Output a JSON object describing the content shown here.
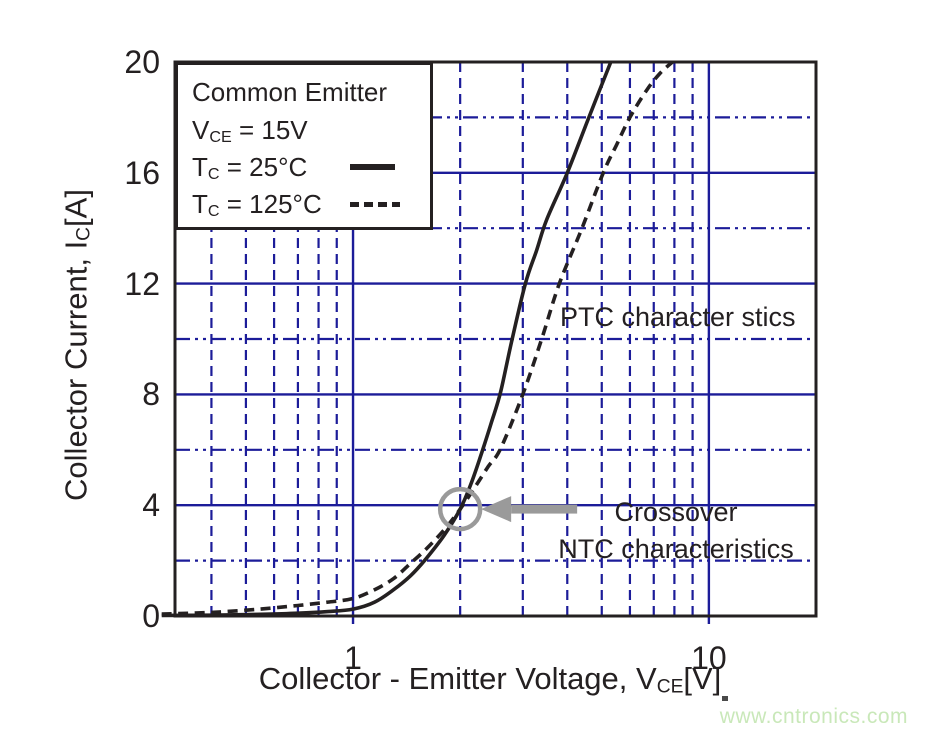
{
  "page": {
    "background": "#ffffff",
    "watermark": {
      "text": "www.cntronics.com",
      "color": "#c9e8b9"
    }
  },
  "chart_data": {
    "type": "line",
    "x_scale": "log",
    "x_range": [
      0.316,
      20
    ],
    "y_range": [
      0,
      20
    ],
    "xlabel": {
      "pre": "Collector - Emitter Voltage, V",
      "sub": "CE",
      "post": "[V]"
    },
    "ylabel": {
      "pre": "Collector Current, I",
      "sub": "C",
      "post": "[A]"
    },
    "x_tick_labels": [
      {
        "value": 1,
        "label": "1"
      },
      {
        "value": 10,
        "label": "10"
      }
    ],
    "y_tick_labels": [
      {
        "value": 0,
        "label": "0"
      },
      {
        "value": 4,
        "label": "4"
      },
      {
        "value": 8,
        "label": "8"
      },
      {
        "value": 12,
        "label": "12"
      },
      {
        "value": 16,
        "label": "16"
      },
      {
        "value": 20,
        "label": "20"
      }
    ],
    "x_major_gridlines": [
      1,
      10
    ],
    "x_minor_gridlines": [
      0.4,
      0.5,
      0.6,
      0.7,
      0.8,
      0.9,
      2,
      3,
      4,
      5,
      6,
      7,
      8,
      9
    ],
    "y_major_gridlines": [
      4,
      8,
      12,
      16
    ],
    "y_minor_gridlines": [
      2,
      6,
      10,
      14,
      18
    ],
    "grid_on": true,
    "grid_color": "#1c1c99",
    "curve_color": "#242021",
    "legend_position": "top-left",
    "series": [
      {
        "name": "Tc = 25°C",
        "style": "solid",
        "points": [
          [
            0.29,
            0.02
          ],
          [
            0.4,
            0.03
          ],
          [
            0.55,
            0.06
          ],
          [
            0.7,
            0.1
          ],
          [
            0.85,
            0.16
          ],
          [
            1.0,
            0.25
          ],
          [
            1.15,
            0.5
          ],
          [
            1.3,
            0.95
          ],
          [
            1.45,
            1.45
          ],
          [
            1.6,
            2.05
          ],
          [
            1.8,
            2.9
          ],
          [
            2.0,
            3.86
          ],
          [
            2.15,
            4.8
          ],
          [
            2.3,
            5.9
          ],
          [
            2.45,
            7.0
          ],
          [
            2.6,
            8.1
          ],
          [
            2.8,
            10.0
          ],
          [
            3.05,
            12.0
          ],
          [
            3.28,
            13.2
          ],
          [
            3.5,
            14.3
          ],
          [
            4.0,
            16.0
          ],
          [
            4.6,
            18.0
          ],
          [
            5.3,
            20.0
          ]
        ]
      },
      {
        "name": "Tc = 125°C",
        "style": "dashed",
        "points": [
          [
            0.29,
            0.07
          ],
          [
            0.4,
            0.13
          ],
          [
            0.55,
            0.25
          ],
          [
            0.7,
            0.38
          ],
          [
            0.85,
            0.5
          ],
          [
            1.0,
            0.63
          ],
          [
            1.15,
            0.95
          ],
          [
            1.3,
            1.35
          ],
          [
            1.45,
            1.9
          ],
          [
            1.6,
            2.4
          ],
          [
            1.8,
            3.1
          ],
          [
            2.0,
            3.86
          ],
          [
            2.2,
            4.65
          ],
          [
            2.4,
            5.4
          ],
          [
            2.6,
            6.05
          ],
          [
            3.0,
            8.0
          ],
          [
            3.39,
            10.0
          ],
          [
            3.8,
            12.0
          ],
          [
            4.4,
            14.0
          ],
          [
            5.05,
            16.0
          ],
          [
            5.5,
            17.0
          ],
          [
            6.0,
            18.0
          ],
          [
            6.7,
            19.0
          ],
          [
            7.3,
            19.6
          ],
          [
            7.9,
            20.0
          ]
        ]
      }
    ]
  },
  "legend": {
    "title": "Common Emitter",
    "vce": {
      "pre": "V",
      "sub": "CE",
      "post": " = 15V"
    },
    "row25": {
      "pre": "T",
      "sub": "C",
      "post": " = 25°C"
    },
    "row125": {
      "pre": "T",
      "sub": "C",
      "post": " = 125°C"
    }
  },
  "annotations": {
    "ptc": "PTC character stics",
    "crossover_line1": "Crossover",
    "crossover_line2": "NTC characteristics",
    "marker": {
      "v": 2.0,
      "i": 3.86,
      "color": "#9a9a9a"
    }
  }
}
